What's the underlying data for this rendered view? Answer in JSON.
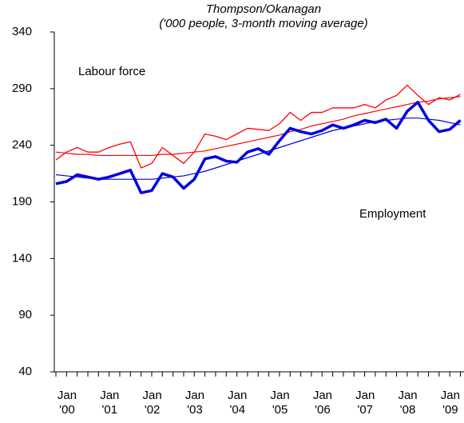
{
  "chart_data": {
    "type": "line",
    "title": "Thompson/Okanagan",
    "subtitle": "('000 people, 3-month moving average)",
    "categories": [
      "Jan '00",
      null,
      null,
      null,
      "Jan '01",
      null,
      null,
      null,
      "Jan '02",
      null,
      null,
      null,
      "Jan '03",
      null,
      null,
      null,
      "Jan '04",
      null,
      null,
      null,
      "Jan '05",
      null,
      null,
      null,
      "Jan '06",
      null,
      null,
      null,
      "Jan '07",
      null,
      null,
      null,
      "Jan '08",
      null,
      null,
      null,
      "Jan '09",
      null,
      null
    ],
    "series": [
      {
        "name": "Labour force",
        "color": "#ff0000",
        "values": [
          227,
          234,
          238,
          234,
          234,
          238,
          241,
          243,
          220,
          224,
          238,
          231,
          224,
          234,
          250,
          248,
          245,
          250,
          255,
          254,
          253,
          259,
          269,
          262,
          269,
          269,
          273,
          273,
          273,
          276,
          273,
          280,
          284,
          293,
          284,
          276,
          282,
          280,
          285
        ]
      },
      {
        "color": "#ff0000",
        "values": [
          234,
          233,
          232,
          232,
          231,
          231,
          231,
          231,
          231,
          231,
          232,
          232,
          233,
          234,
          235,
          237,
          239,
          241,
          243,
          245,
          247,
          249,
          252,
          254,
          257,
          259,
          261,
          263,
          266,
          268,
          270,
          272,
          274,
          276,
          278,
          279,
          281,
          282,
          283
        ]
      },
      {
        "name": "Employment",
        "color": "#0000e0",
        "values": [
          206,
          208,
          214,
          212,
          210,
          212,
          215,
          218,
          198,
          200,
          215,
          212,
          202,
          210,
          228,
          230,
          226,
          225,
          234,
          237,
          232,
          244,
          255,
          252,
          250,
          253,
          258,
          255,
          258,
          262,
          260,
          263,
          255,
          270,
          278,
          262,
          252,
          254,
          262
        ]
      },
      {
        "color": "#0000e0",
        "values": [
          214,
          213,
          212,
          211,
          210,
          210,
          210,
          210,
          210,
          210,
          211,
          212,
          213,
          215,
          217,
          220,
          223,
          226,
          229,
          232,
          235,
          238,
          241,
          244,
          247,
          250,
          253,
          255,
          257,
          259,
          261,
          262,
          263,
          264,
          264,
          263,
          262,
          260,
          258
        ]
      }
    ],
    "ylim": [
      40,
      340
    ],
    "yticks": [
      40,
      90,
      140,
      190,
      240,
      290,
      340
    ]
  }
}
